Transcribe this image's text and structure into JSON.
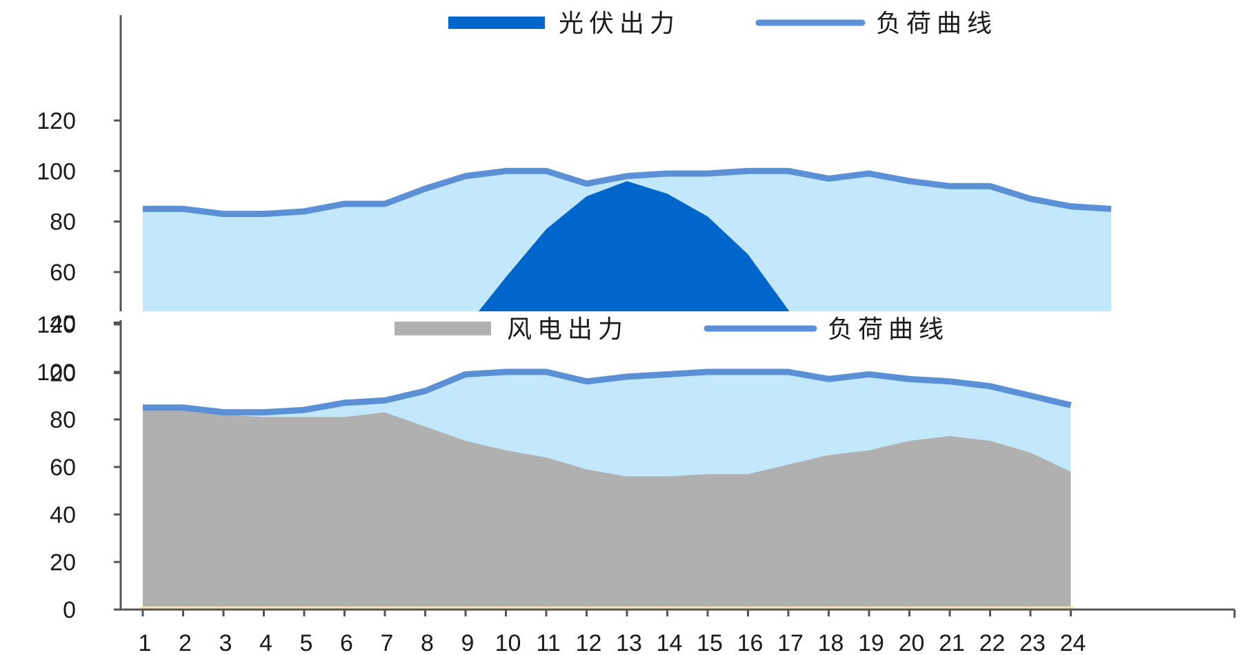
{
  "colors": {
    "load_fill": "#c3e8fb",
    "load_line": "#5b8fd6",
    "solar": "#0066cc",
    "wind": "#b0b0b0",
    "axis": "#555555",
    "baseline": "#f7e3b0"
  },
  "chart_data": [
    {
      "type": "area",
      "title": "",
      "xlabel": "",
      "ylabel": "",
      "ylim": [
        0,
        120
      ],
      "visible_ylim": [
        10,
        120
      ],
      "y_ticks": [
        120,
        100,
        80,
        60,
        40,
        20
      ],
      "grid": false,
      "legend_position": "top",
      "x": [
        1,
        2,
        3,
        4,
        5,
        6,
        7,
        8,
        9,
        10,
        11,
        12,
        13,
        14,
        15,
        16,
        17,
        18,
        19,
        20,
        21,
        22,
        23,
        24
      ],
      "series": [
        {
          "name": "光伏出力",
          "kind": "area",
          "color": "#0066cc",
          "x": [
            7.3,
            8,
            9,
            10,
            11,
            12,
            13,
            14,
            15,
            16,
            17,
            18,
            19,
            19.3
          ],
          "values": [
            10,
            15,
            38,
            58,
            77,
            90,
            96,
            91,
            82,
            67,
            45,
            23,
            10,
            10
          ]
        },
        {
          "name": "负荷曲线",
          "kind": "line",
          "color": "#5b8fd6",
          "x": [
            1,
            2,
            3,
            4,
            5,
            6,
            7,
            8,
            9,
            10,
            11,
            12,
            13,
            14,
            15,
            16,
            17,
            18,
            19,
            20,
            21,
            22,
            23,
            24,
            25
          ],
          "values": [
            85,
            85,
            83,
            83,
            84,
            87,
            87,
            93,
            98,
            100,
            100,
            95,
            98,
            99,
            99,
            100,
            100,
            97,
            99,
            96,
            94,
            94,
            89,
            86,
            85
          ]
        }
      ]
    },
    {
      "type": "area",
      "title": "",
      "xlabel": "",
      "ylabel": "",
      "ylim": [
        0,
        120
      ],
      "y_ticks": [
        120,
        100,
        80,
        60,
        40,
        20,
        0
      ],
      "grid": false,
      "legend_position": "top",
      "categories": [
        "1",
        "2",
        "3",
        "4",
        "5",
        "6",
        "7",
        "8",
        "9",
        "10",
        "11",
        "12",
        "13",
        "14",
        "15",
        "16",
        "17",
        "18",
        "19",
        "20",
        "21",
        "22",
        "23",
        "24"
      ],
      "series": [
        {
          "name": "风电出力",
          "kind": "area",
          "color": "#b0b0b0",
          "values": [
            85,
            84,
            82,
            81,
            81,
            81,
            83,
            77,
            71,
            67,
            64,
            59,
            56,
            56,
            57,
            57,
            61,
            65,
            67,
            71,
            73,
            71,
            66,
            58
          ]
        },
        {
          "name": "负荷曲线",
          "kind": "line",
          "color": "#5b8fd6",
          "values": [
            85,
            85,
            83,
            83,
            84,
            87,
            88,
            92,
            99,
            100,
            100,
            96,
            98,
            99,
            100,
            100,
            100,
            97,
            99,
            97,
            96,
            94,
            90,
            86
          ]
        }
      ]
    }
  ]
}
